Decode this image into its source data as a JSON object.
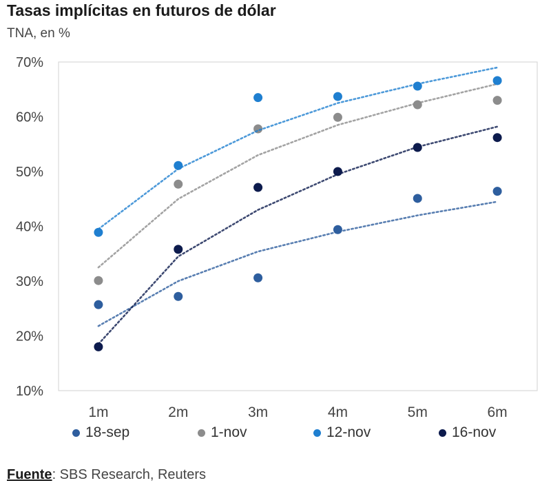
{
  "title": "Tasas implícitas en futuros de dólar",
  "subtitle": "TNA, en %",
  "source": {
    "label": "Fuente",
    "text": ": SBS Research, Reuters"
  },
  "chart_data": {
    "type": "scatter",
    "categories": [
      "1m",
      "2m",
      "3m",
      "4m",
      "5m",
      "6m"
    ],
    "ylim": [
      10,
      70
    ],
    "yticks": [
      "10%",
      "20%",
      "30%",
      "40%",
      "50%",
      "60%",
      "70%"
    ],
    "grid": false,
    "trendline": "logarithmic",
    "legend_position": "bottom",
    "series": [
      {
        "name": "18-sep",
        "color": "#2e5e9e",
        "values": [
          25.7,
          27.2,
          30.6,
          39.4,
          45.1,
          46.4
        ],
        "trend": [
          21.8,
          30.0,
          35.4,
          39.0,
          42.0,
          44.5
        ]
      },
      {
        "name": "1-nov",
        "color": "#8c8c8c",
        "values": [
          30.1,
          47.7,
          57.8,
          59.9,
          62.2,
          63.0
        ],
        "trend": [
          32.5,
          45.0,
          53.0,
          58.5,
          62.5,
          66.0
        ]
      },
      {
        "name": "12-nov",
        "color": "#1f7fd0",
        "values": [
          38.9,
          51.1,
          63.5,
          63.7,
          65.6,
          66.6
        ],
        "trend": [
          39.5,
          50.5,
          57.5,
          62.5,
          66.0,
          69.0
        ]
      },
      {
        "name": "16-nov",
        "color": "#0d1b4d",
        "values": [
          18.0,
          35.8,
          47.1,
          50.0,
          54.4,
          56.2
        ],
        "trend": [
          18.5,
          34.5,
          43.0,
          49.5,
          54.5,
          58.2
        ]
      }
    ]
  }
}
